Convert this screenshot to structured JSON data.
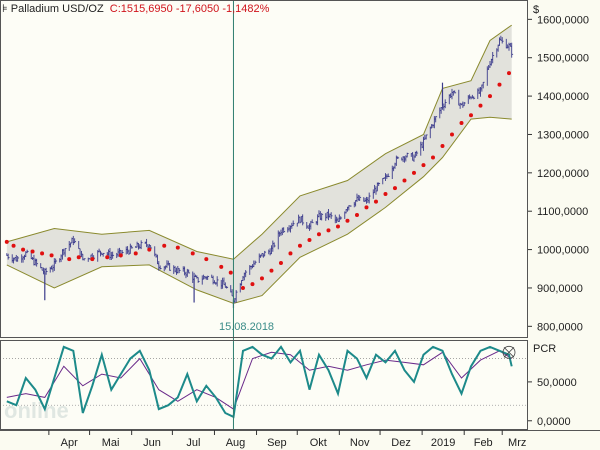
{
  "header": {
    "instrument": "Palladium USD/OZ",
    "last_values": "C:1515,6950 -17,6050 -1,1482%"
  },
  "cursor": {
    "date_label": "15.08.2018"
  },
  "colors": {
    "background": "#fbfbf1",
    "panel_bg": "#fdfdf6",
    "band_fill": "#e2e2dc",
    "band_line": "#8a8a2e",
    "candles": "#3b3b8c",
    "sar_dots": "#e01010",
    "pcr_main": "#1d8a8a",
    "pcr_signal": "#6a2a8a",
    "cursor_line": "#2e7d6e"
  },
  "chart_data": [
    {
      "type": "line",
      "name": "price-panel",
      "title": "Palladium USD/OZ",
      "ylabel": "$",
      "ylim": [
        780,
        1640
      ],
      "y_ticks": [
        "1600,0000",
        "1500,0000",
        "1400,0000",
        "1300,0000",
        "1200,0000",
        "1100,0000",
        "1000,0000",
        "900,0000",
        "800,0000"
      ],
      "y_tick_values": [
        1600,
        1500,
        1400,
        1300,
        1200,
        1100,
        1000,
        900,
        800
      ],
      "x_month_labels": [
        "Apr",
        "Mai",
        "Jun",
        "Jul",
        "Aug",
        "Sep",
        "Okt",
        "Nov",
        "Dez",
        "2019",
        "Feb",
        "Mrz"
      ],
      "cursor_date": "15.08.2018",
      "close_points": [
        [
          "2018-03-01",
          985
        ],
        [
          "2018-03-08",
          975
        ],
        [
          "2018-03-15",
          990
        ],
        [
          "2018-03-22",
          965
        ],
        [
          "2018-03-29",
          940
        ],
        [
          "2018-04-05",
          960
        ],
        [
          "2018-04-12",
          1000
        ],
        [
          "2018-04-19",
          1025
        ],
        [
          "2018-04-26",
          975
        ],
        [
          "2018-05-03",
          985
        ],
        [
          "2018-05-10",
          995
        ],
        [
          "2018-05-17",
          985
        ],
        [
          "2018-05-24",
          990
        ],
        [
          "2018-05-31",
          1000
        ],
        [
          "2018-06-07",
          1010
        ],
        [
          "2018-06-14",
          1015
        ],
        [
          "2018-06-21",
          960
        ],
        [
          "2018-06-28",
          955
        ],
        [
          "2018-07-05",
          945
        ],
        [
          "2018-07-12",
          940
        ],
        [
          "2018-07-19",
          920
        ],
        [
          "2018-07-26",
          930
        ],
        [
          "2018-08-02",
          920
        ],
        [
          "2018-08-09",
          905
        ],
        [
          "2018-08-15",
          870
        ],
        [
          "2018-08-22",
          935
        ],
        [
          "2018-08-29",
          960
        ],
        [
          "2018-09-05",
          985
        ],
        [
          "2018-09-12",
          1000
        ],
        [
          "2018-09-19",
          1050
        ],
        [
          "2018-09-26",
          1065
        ],
        [
          "2018-10-03",
          1080
        ],
        [
          "2018-10-10",
          1060
        ],
        [
          "2018-10-17",
          1085
        ],
        [
          "2018-10-24",
          1090
        ],
        [
          "2018-10-31",
          1070
        ],
        [
          "2018-11-07",
          1115
        ],
        [
          "2018-11-14",
          1130
        ],
        [
          "2018-11-21",
          1125
        ],
        [
          "2018-11-28",
          1160
        ],
        [
          "2018-12-05",
          1185
        ],
        [
          "2018-12-12",
          1230
        ],
        [
          "2018-12-19",
          1245
        ],
        [
          "2018-12-26",
          1240
        ],
        [
          "2019-01-02",
          1280
        ],
        [
          "2019-01-09",
          1330
        ],
        [
          "2019-01-16",
          1375
        ],
        [
          "2019-01-23",
          1410
        ],
        [
          "2019-01-30",
          1375
        ],
        [
          "2019-02-06",
          1400
        ],
        [
          "2019-02-13",
          1410
        ],
        [
          "2019-02-20",
          1490
        ],
        [
          "2019-02-27",
          1545
        ],
        [
          "2019-03-06",
          1530
        ],
        [
          "2019-03-08",
          1516
        ]
      ],
      "bollinger_upper": [
        [
          "2018-03-01",
          1020
        ],
        [
          "2018-04-05",
          1055
        ],
        [
          "2018-05-10",
          1040
        ],
        [
          "2018-06-14",
          1050
        ],
        [
          "2018-07-19",
          995
        ],
        [
          "2018-08-15",
          975
        ],
        [
          "2018-09-05",
          1040
        ],
        [
          "2018-10-03",
          1140
        ],
        [
          "2018-11-07",
          1180
        ],
        [
          "2018-12-05",
          1250
        ],
        [
          "2019-01-02",
          1300
        ],
        [
          "2019-01-16",
          1420
        ],
        [
          "2019-02-06",
          1440
        ],
        [
          "2019-02-20",
          1545
        ],
        [
          "2019-03-08",
          1585
        ]
      ],
      "bollinger_lower": [
        [
          "2018-03-01",
          960
        ],
        [
          "2018-04-05",
          900
        ],
        [
          "2018-05-10",
          955
        ],
        [
          "2018-06-14",
          960
        ],
        [
          "2018-07-19",
          895
        ],
        [
          "2018-08-15",
          860
        ],
        [
          "2018-09-05",
          880
        ],
        [
          "2018-10-03",
          980
        ],
        [
          "2018-11-07",
          1040
        ],
        [
          "2018-12-05",
          1110
        ],
        [
          "2019-01-02",
          1190
        ],
        [
          "2019-01-16",
          1240
        ],
        [
          "2019-02-06",
          1340
        ],
        [
          "2019-02-20",
          1345
        ],
        [
          "2019-03-08",
          1340
        ]
      ],
      "parabolic_sar": [
        [
          "2018-03-01",
          1020
        ],
        [
          "2018-03-06",
          1010
        ],
        [
          "2018-03-13",
          1000
        ],
        [
          "2018-03-20",
          995
        ],
        [
          "2018-03-27",
          990
        ],
        [
          "2018-04-03",
          985
        ],
        [
          "2018-04-16",
          975
        ],
        [
          "2018-04-23",
          980
        ],
        [
          "2018-05-03",
          975
        ],
        [
          "2018-05-14",
          980
        ],
        [
          "2018-05-24",
          985
        ],
        [
          "2018-06-04",
          990
        ],
        [
          "2018-06-14",
          1000
        ],
        [
          "2018-06-25",
          1010
        ],
        [
          "2018-07-05",
          1005
        ],
        [
          "2018-07-16",
          990
        ],
        [
          "2018-07-26",
          975
        ],
        [
          "2018-08-06",
          955
        ],
        [
          "2018-08-13",
          940
        ],
        [
          "2018-08-22",
          900
        ],
        [
          "2018-08-29",
          910
        ],
        [
          "2018-09-05",
          925
        ],
        [
          "2018-09-12",
          945
        ],
        [
          "2018-09-19",
          965
        ],
        [
          "2018-09-26",
          990
        ],
        [
          "2018-10-03",
          1010
        ],
        [
          "2018-10-10",
          1025
        ],
        [
          "2018-10-17",
          1040
        ],
        [
          "2018-10-24",
          1050
        ],
        [
          "2018-10-31",
          1060
        ],
        [
          "2018-11-07",
          1075
        ],
        [
          "2018-11-14",
          1090
        ],
        [
          "2018-11-21",
          1110
        ],
        [
          "2018-11-28",
          1125
        ],
        [
          "2018-12-05",
          1145
        ],
        [
          "2018-12-12",
          1160
        ],
        [
          "2018-12-19",
          1180
        ],
        [
          "2018-12-26",
          1200
        ],
        [
          "2019-01-02",
          1220
        ],
        [
          "2019-01-09",
          1240
        ],
        [
          "2019-01-16",
          1270
        ],
        [
          "2019-01-23",
          1300
        ],
        [
          "2019-01-30",
          1330
        ],
        [
          "2019-02-06",
          1350
        ],
        [
          "2019-02-13",
          1375
        ],
        [
          "2019-02-20",
          1400
        ],
        [
          "2019-02-27",
          1430
        ],
        [
          "2019-03-06",
          1460
        ]
      ]
    },
    {
      "type": "line",
      "name": "pcr-panel",
      "ylabel": "PCR",
      "ylim": [
        -8,
        100
      ],
      "y_ticks": [
        "50,0000",
        "0,0000"
      ],
      "y_tick_values": [
        50,
        0
      ],
      "reference_levels": [
        80,
        20
      ],
      "series": [
        {
          "values": [
            [
              "2018-03-01",
              25
            ],
            [
              "2018-03-08",
              20
            ],
            [
              "2018-03-15",
              55
            ],
            [
              "2018-03-22",
              40
            ],
            [
              "2018-03-29",
              15
            ],
            [
              "2018-04-05",
              55
            ],
            [
              "2018-04-12",
              95
            ],
            [
              "2018-04-19",
              90
            ],
            [
              "2018-04-26",
              10
            ],
            [
              "2018-05-03",
              45
            ],
            [
              "2018-05-10",
              85
            ],
            [
              "2018-05-17",
              40
            ],
            [
              "2018-05-24",
              60
            ],
            [
              "2018-05-31",
              80
            ],
            [
              "2018-06-07",
              90
            ],
            [
              "2018-06-14",
              65
            ],
            [
              "2018-06-21",
              15
            ],
            [
              "2018-06-28",
              20
            ],
            [
              "2018-07-05",
              30
            ],
            [
              "2018-07-12",
              60
            ],
            [
              "2018-07-19",
              25
            ],
            [
              "2018-07-26",
              45
            ],
            [
              "2018-08-02",
              30
            ],
            [
              "2018-08-09",
              10
            ],
            [
              "2018-08-15",
              5
            ],
            [
              "2018-08-22",
              90
            ],
            [
              "2018-08-29",
              95
            ],
            [
              "2018-09-05",
              85
            ],
            [
              "2018-09-12",
              80
            ],
            [
              "2018-09-19",
              95
            ],
            [
              "2018-09-26",
              75
            ],
            [
              "2018-10-03",
              90
            ],
            [
              "2018-10-10",
              40
            ],
            [
              "2018-10-17",
              85
            ],
            [
              "2018-10-24",
              65
            ],
            [
              "2018-10-31",
              35
            ],
            [
              "2018-11-07",
              90
            ],
            [
              "2018-11-14",
              80
            ],
            [
              "2018-11-21",
              55
            ],
            [
              "2018-11-28",
              85
            ],
            [
              "2018-12-05",
              75
            ],
            [
              "2018-12-12",
              90
            ],
            [
              "2018-12-19",
              65
            ],
            [
              "2018-12-26",
              50
            ],
            [
              "2019-01-02",
              85
            ],
            [
              "2019-01-09",
              95
            ],
            [
              "2019-01-16",
              90
            ],
            [
              "2019-01-23",
              60
            ],
            [
              "2019-01-30",
              35
            ],
            [
              "2019-02-06",
              70
            ],
            [
              "2019-02-13",
              90
            ],
            [
              "2019-02-20",
              95
            ],
            [
              "2019-02-27",
              90
            ],
            [
              "2019-03-06",
              85
            ],
            [
              "2019-03-08",
              70
            ]
          ]
        },
        {
          "values": [
            [
              "2018-03-01",
              30
            ],
            [
              "2018-03-15",
              35
            ],
            [
              "2018-03-29",
              30
            ],
            [
              "2018-04-12",
              70
            ],
            [
              "2018-04-26",
              45
            ],
            [
              "2018-05-10",
              60
            ],
            [
              "2018-05-24",
              55
            ],
            [
              "2018-06-07",
              80
            ],
            [
              "2018-06-21",
              40
            ],
            [
              "2018-07-05",
              25
            ],
            [
              "2018-07-19",
              40
            ],
            [
              "2018-08-02",
              30
            ],
            [
              "2018-08-15",
              15
            ],
            [
              "2018-08-29",
              80
            ],
            [
              "2018-09-12",
              88
            ],
            [
              "2018-09-26",
              85
            ],
            [
              "2018-10-10",
              65
            ],
            [
              "2018-10-24",
              70
            ],
            [
              "2018-11-07",
              65
            ],
            [
              "2018-11-21",
              72
            ],
            [
              "2018-12-05",
              78
            ],
            [
              "2018-12-19",
              75
            ],
            [
              "2019-01-02",
              72
            ],
            [
              "2019-01-16",
              88
            ],
            [
              "2019-01-30",
              55
            ],
            [
              "2019-02-13",
              78
            ],
            [
              "2019-02-27",
              90
            ],
            [
              "2019-03-08",
              80
            ]
          ]
        }
      ]
    }
  ]
}
